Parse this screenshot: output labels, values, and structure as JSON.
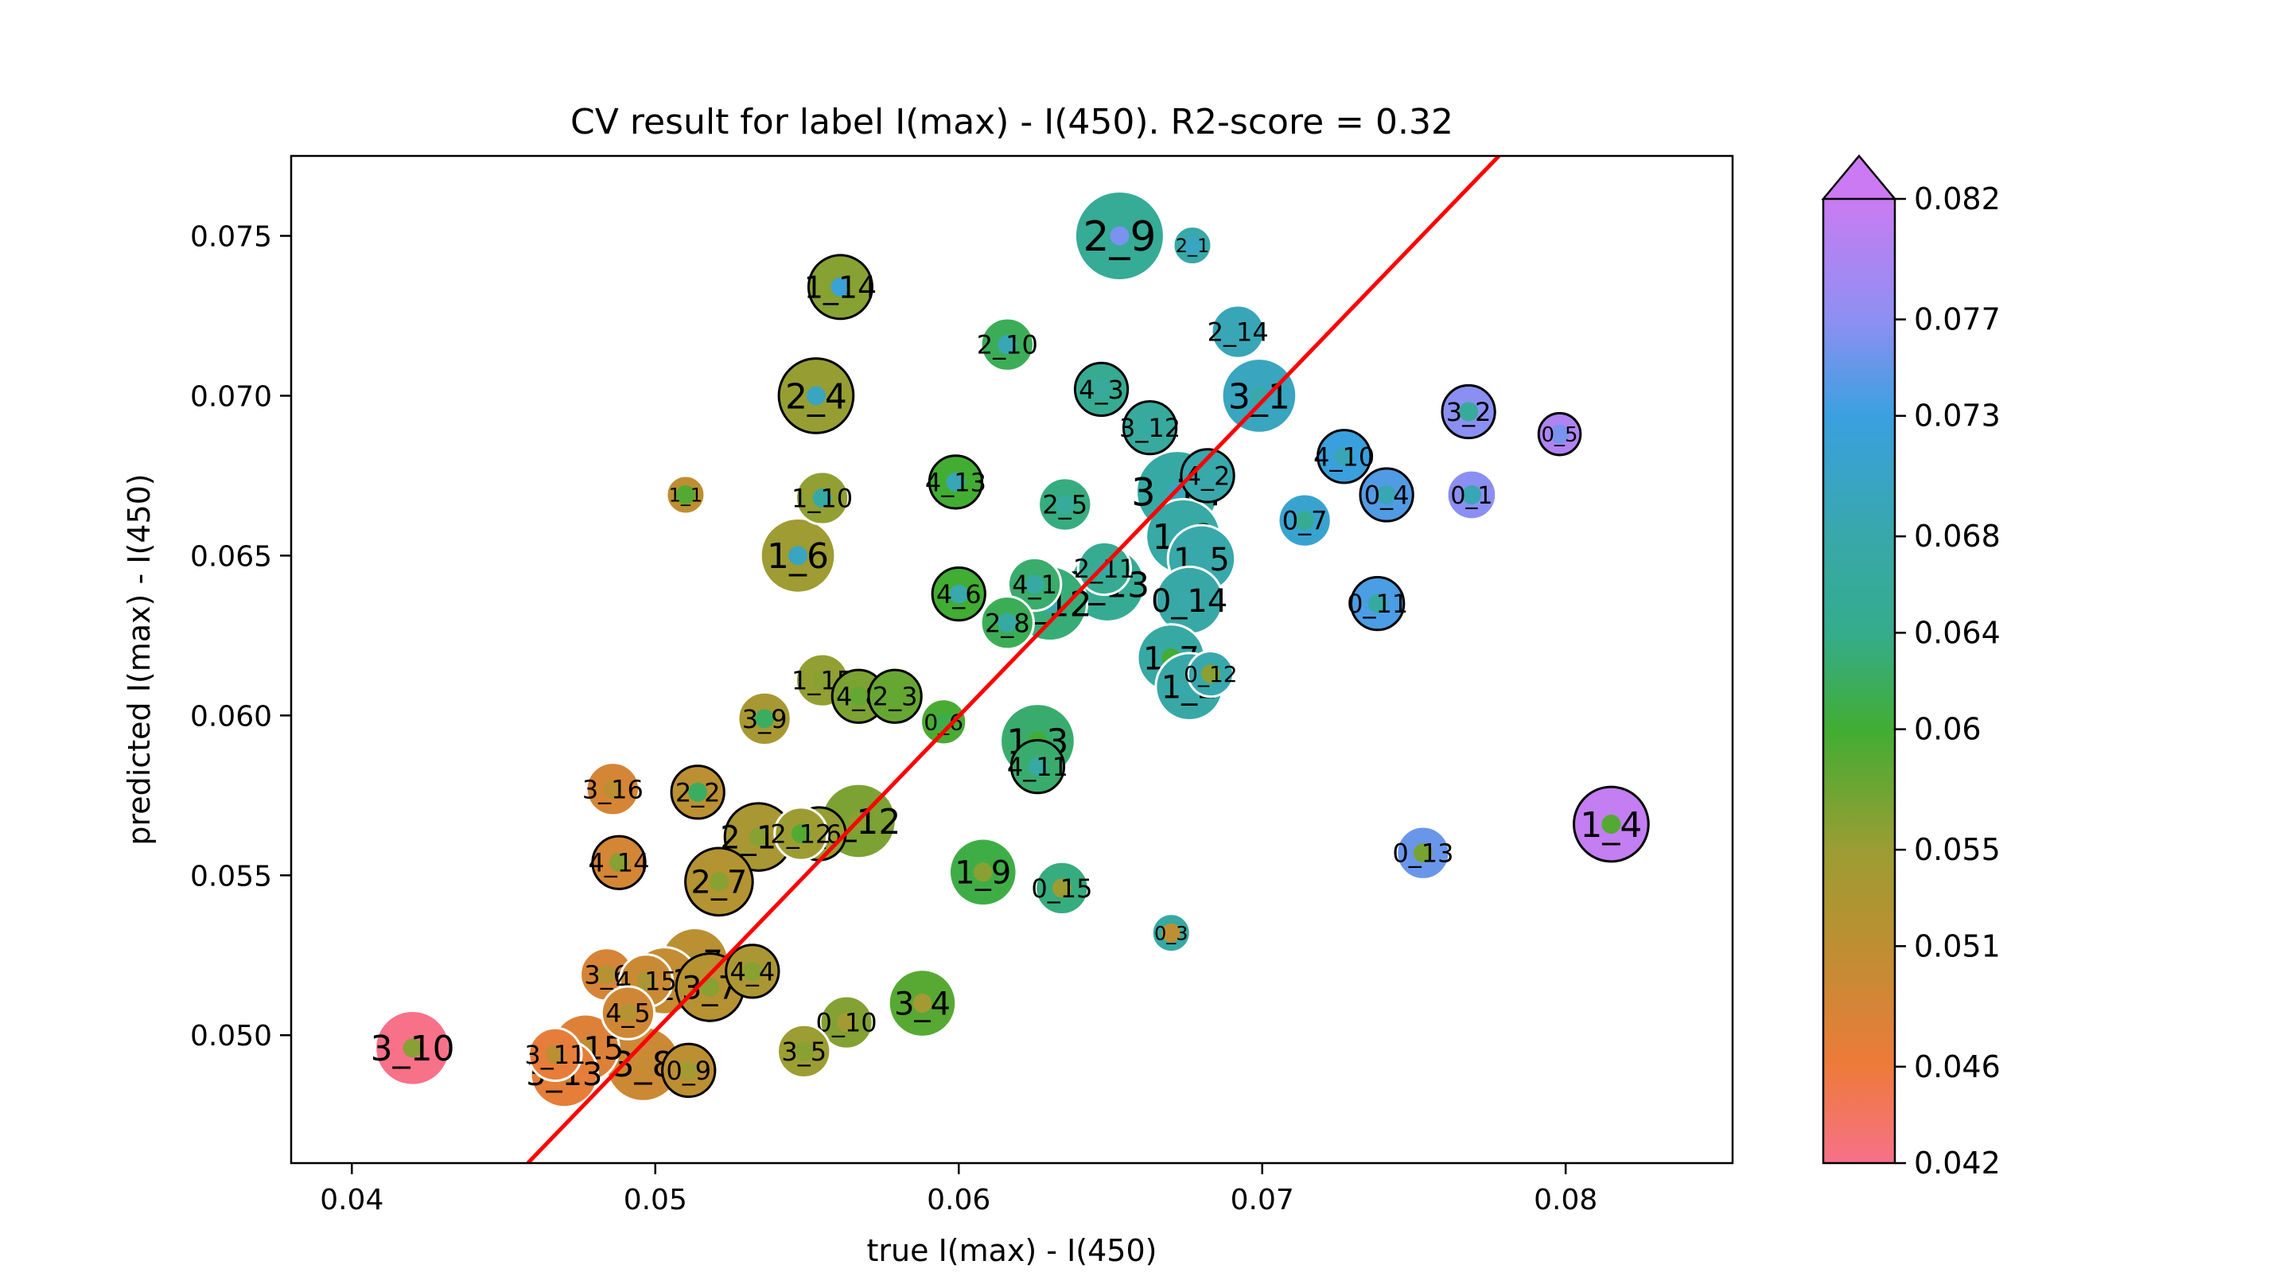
{
  "chart_data": {
    "type": "scatter",
    "title": "CV result for label I(max) - I(450). R2-score = 0.32",
    "xlabel": "true I(max) - I(450)",
    "ylabel": "predicted I(max) - I(450)",
    "xlim": [
      0.038,
      0.0855
    ],
    "ylim": [
      0.046,
      0.0775
    ],
    "xticks": [
      0.04,
      0.05,
      0.06,
      0.07,
      0.08
    ],
    "xtick_labels": [
      "0.04",
      "0.05",
      "0.06",
      "0.07",
      "0.08"
    ],
    "yticks": [
      0.05,
      0.055,
      0.06,
      0.065,
      0.07,
      0.075
    ],
    "ytick_labels": [
      "0.050",
      "0.055",
      "0.060",
      "0.065",
      "0.070",
      "0.075"
    ],
    "grid": false,
    "fit_line": {
      "color": "#ff0000",
      "points": [
        [
          0.0458,
          0.046
        ],
        [
          0.0778,
          0.0775
        ]
      ]
    },
    "colorbar": {
      "min": 0.042,
      "max": 0.082,
      "extend": "max",
      "ticks": [
        0.042,
        0.046,
        0.051,
        0.055,
        0.06,
        0.064,
        0.068,
        0.073,
        0.077,
        0.082
      ],
      "tick_labels": [
        "0.042",
        "0.046",
        "0.051",
        "0.055",
        "0.06",
        "0.064",
        "0.068",
        "0.073",
        "0.077",
        "0.082"
      ],
      "stops": [
        {
          "v": 0.042,
          "c": "#f77189"
        },
        {
          "v": 0.046,
          "c": "#ee7a3b"
        },
        {
          "v": 0.051,
          "c": "#bd8f32"
        },
        {
          "v": 0.055,
          "c": "#9b9d33"
        },
        {
          "v": 0.06,
          "c": "#41ad33"
        },
        {
          "v": 0.064,
          "c": "#35ac8c"
        },
        {
          "v": 0.068,
          "c": "#38a8aa"
        },
        {
          "v": 0.073,
          "c": "#3aa0e0"
        },
        {
          "v": 0.077,
          "c": "#8e8ff2"
        },
        {
          "v": 0.082,
          "c": "#c97cf2"
        }
      ],
      "over_color": "#cc7af4"
    },
    "points": [
      {
        "label": "2_9",
        "x": 0.0653,
        "y": 0.075,
        "size": 2.0,
        "edge": "white",
        "inner": 0.076
      },
      {
        "label": "2_1",
        "x": 0.0677,
        "y": 0.0747,
        "size": 0.6,
        "edge": "white",
        "inner": 0.07
      },
      {
        "label": "1_14",
        "x": 0.0561,
        "y": 0.0734,
        "size": 1.3,
        "edge": "black",
        "inner": 0.072
      },
      {
        "label": "2_14",
        "x": 0.0692,
        "y": 0.072,
        "size": 1.0,
        "edge": "white",
        "inner": 0.069
      },
      {
        "label": "2_10",
        "x": 0.0616,
        "y": 0.0716,
        "size": 1.0,
        "edge": "white",
        "inner": 0.069
      },
      {
        "label": "2_4",
        "x": 0.0553,
        "y": 0.07,
        "size": 1.6,
        "edge": "black",
        "inner": 0.07
      },
      {
        "label": "3_1",
        "x": 0.0699,
        "y": 0.07,
        "size": 1.6,
        "edge": "white",
        "inner": 0.068
      },
      {
        "label": "4_3",
        "x": 0.0647,
        "y": 0.0702,
        "size": 1.0,
        "edge": "black",
        "inner": 0.066
      },
      {
        "label": "3_2",
        "x": 0.0768,
        "y": 0.0695,
        "size": 1.0,
        "edge": "black",
        "inner": 0.066
      },
      {
        "label": "3_12",
        "x": 0.0663,
        "y": 0.069,
        "size": 1.0,
        "edge": "black",
        "inner": 0.067
      },
      {
        "label": "0_5",
        "x": 0.0798,
        "y": 0.0688,
        "size": 0.7,
        "edge": "black",
        "inner": 0.076
      },
      {
        "label": "4_10",
        "x": 0.0727,
        "y": 0.0681,
        "size": 1.0,
        "edge": "black",
        "inner": 0.069
      },
      {
        "label": "4_13",
        "x": 0.0599,
        "y": 0.0673,
        "size": 1.0,
        "edge": "black",
        "inner": 0.069
      },
      {
        "label": "4_2",
        "x": 0.0682,
        "y": 0.0675,
        "size": 1.0,
        "edge": "black",
        "inner": 0.068
      },
      {
        "label": "3_14",
        "x": 0.0672,
        "y": 0.067,
        "size": 1.8,
        "edge": "white",
        "inner": 0.07
      },
      {
        "label": "1_1",
        "x": 0.051,
        "y": 0.0669,
        "size": 0.6,
        "edge": "white",
        "inner": 0.059
      },
      {
        "label": "0_4",
        "x": 0.0741,
        "y": 0.0669,
        "size": 1.0,
        "edge": "black",
        "inner": 0.069
      },
      {
        "label": "0_1",
        "x": 0.0769,
        "y": 0.0669,
        "size": 0.9,
        "edge": "white",
        "inner": 0.069
      },
      {
        "label": "1_10",
        "x": 0.0555,
        "y": 0.0668,
        "size": 1.0,
        "edge": "white",
        "inner": 0.067
      },
      {
        "label": "2_5",
        "x": 0.0635,
        "y": 0.0666,
        "size": 1.0,
        "edge": "white",
        "inner": 0.066
      },
      {
        "label": "0_7",
        "x": 0.0714,
        "y": 0.0661,
        "size": 1.0,
        "edge": "white",
        "inner": 0.065
      },
      {
        "label": "1_8",
        "x": 0.0674,
        "y": 0.0656,
        "size": 1.6,
        "edge": "white",
        "inner": 0.069
      },
      {
        "label": "1_6",
        "x": 0.0547,
        "y": 0.065,
        "size": 1.6,
        "edge": "white",
        "inner": 0.07
      },
      {
        "label": "1_5",
        "x": 0.068,
        "y": 0.0649,
        "size": 1.4,
        "edge": "white",
        "inner": 0.068
      },
      {
        "label": "2_11",
        "x": 0.0648,
        "y": 0.0646,
        "size": 1.0,
        "edge": "white",
        "inner": 0.067
      },
      {
        "label": "2_13",
        "x": 0.0649,
        "y": 0.0641,
        "size": 1.6,
        "edge": "white",
        "inner": 0.068
      },
      {
        "label": "4_6",
        "x": 0.06,
        "y": 0.0638,
        "size": 1.0,
        "edge": "black",
        "inner": 0.068
      },
      {
        "label": "4_1",
        "x": 0.0625,
        "y": 0.0641,
        "size": 1.0,
        "edge": "white",
        "inner": 0.067
      },
      {
        "label": "0_14",
        "x": 0.0676,
        "y": 0.0636,
        "size": 1.4,
        "edge": "white",
        "inner": 0.068
      },
      {
        "label": "4_12",
        "x": 0.063,
        "y": 0.0635,
        "size": 1.6,
        "edge": "white",
        "inner": 0.068
      },
      {
        "label": "0_11",
        "x": 0.0738,
        "y": 0.0635,
        "size": 1.0,
        "edge": "black",
        "inner": 0.067
      },
      {
        "label": "2_8",
        "x": 0.0616,
        "y": 0.0629,
        "size": 1.0,
        "edge": "white",
        "inner": 0.067
      },
      {
        "label": "1_7",
        "x": 0.067,
        "y": 0.0618,
        "size": 1.4,
        "edge": "white",
        "inner": 0.06
      },
      {
        "label": "0_12",
        "x": 0.0683,
        "y": 0.0613,
        "size": 0.8,
        "edge": "white",
        "inner": 0.056
      },
      {
        "label": "1_2",
        "x": 0.0676,
        "y": 0.0609,
        "size": 1.4,
        "edge": "white",
        "inner": 0.068
      },
      {
        "label": "1_15",
        "x": 0.0555,
        "y": 0.0611,
        "size": 1.0,
        "edge": "white",
        "inner": 0.056
      },
      {
        "label": "4_8",
        "x": 0.0567,
        "y": 0.0606,
        "size": 1.0,
        "edge": "black",
        "inner": 0.058
      },
      {
        "label": "2_3",
        "x": 0.0579,
        "y": 0.0606,
        "size": 1.0,
        "edge": "black",
        "inner": 0.058
      },
      {
        "label": "3_9",
        "x": 0.0536,
        "y": 0.0599,
        "size": 1.0,
        "edge": "white",
        "inner": 0.062
      },
      {
        "label": "0_6",
        "x": 0.0595,
        "y": 0.0598,
        "size": 0.8,
        "edge": "white",
        "inner": 0.061
      },
      {
        "label": "1_3",
        "x": 0.0626,
        "y": 0.0592,
        "size": 1.6,
        "edge": "white",
        "inner": 0.06
      },
      {
        "label": "4_11",
        "x": 0.0626,
        "y": 0.0584,
        "size": 1.0,
        "edge": "black",
        "inner": 0.067
      },
      {
        "label": "3_16",
        "x": 0.0486,
        "y": 0.0577,
        "size": 1.0,
        "edge": "white",
        "inner": 0.051
      },
      {
        "label": "2_2",
        "x": 0.0514,
        "y": 0.0576,
        "size": 1.0,
        "edge": "black",
        "inner": 0.062
      },
      {
        "label": "1_12",
        "x": 0.0567,
        "y": 0.0567,
        "size": 1.6,
        "edge": "white",
        "inner": 0.056
      },
      {
        "label": "1_4",
        "x": 0.0815,
        "y": 0.0566,
        "size": 1.6,
        "edge": "black",
        "inner": 0.059
      },
      {
        "label": "2_6",
        "x": 0.0554,
        "y": 0.0563,
        "size": 1.0,
        "edge": "black",
        "inner": 0.059
      },
      {
        "label": "2_12",
        "x": 0.0548,
        "y": 0.0563,
        "size": 1.0,
        "edge": "white",
        "inner": 0.059
      },
      {
        "label": "2_13",
        "x": 0.0534,
        "y": 0.0562,
        "size": 1.4,
        "edge": "black",
        "inner": 0.056
      },
      {
        "label": "0_13",
        "x": 0.0753,
        "y": 0.0557,
        "size": 1.0,
        "edge": "white",
        "inner": 0.057
      },
      {
        "label": "4_14",
        "x": 0.0488,
        "y": 0.0554,
        "size": 1.0,
        "edge": "black",
        "inner": 0.056
      },
      {
        "label": "1_9",
        "x": 0.0608,
        "y": 0.0551,
        "size": 1.4,
        "edge": "white",
        "inner": 0.056
      },
      {
        "label": "2_7",
        "x": 0.0521,
        "y": 0.0548,
        "size": 1.4,
        "edge": "black",
        "inner": 0.056
      },
      {
        "label": "0_15",
        "x": 0.0634,
        "y": 0.0546,
        "size": 1.0,
        "edge": "white",
        "inner": 0.055
      },
      {
        "label": "0_3",
        "x": 0.067,
        "y": 0.0532,
        "size": 0.6,
        "edge": "white",
        "inner": 0.051
      },
      {
        "label": "3_7",
        "x": 0.0513,
        "y": 0.0523,
        "size": 1.4,
        "edge": "white",
        "inner": 0.053
      },
      {
        "label": "4_4",
        "x": 0.0532,
        "y": 0.052,
        "size": 1.0,
        "edge": "black",
        "inner": 0.056
      },
      {
        "label": "3_6",
        "x": 0.0484,
        "y": 0.0519,
        "size": 1.0,
        "edge": "white",
        "inner": 0.052
      },
      {
        "label": "4_15",
        "x": 0.0497,
        "y": 0.0517,
        "size": 1.0,
        "edge": "white",
        "inner": 0.053
      },
      {
        "label": "3_3",
        "x": 0.0503,
        "y": 0.0517,
        "size": 1.4,
        "edge": "white",
        "inner": 0.053
      },
      {
        "label": "3_7",
        "x": 0.0518,
        "y": 0.0515,
        "size": 1.4,
        "edge": "black",
        "inner": 0.056
      },
      {
        "label": "3_4",
        "x": 0.0588,
        "y": 0.051,
        "size": 1.4,
        "edge": "white",
        "inner": 0.054
      },
      {
        "label": "4_5",
        "x": 0.0491,
        "y": 0.0507,
        "size": 1.0,
        "edge": "white",
        "inner": 0.052
      },
      {
        "label": "0_10",
        "x": 0.0563,
        "y": 0.0504,
        "size": 1.0,
        "edge": "white",
        "inner": 0.054
      },
      {
        "label": "3_10",
        "x": 0.042,
        "y": 0.0496,
        "size": 1.6,
        "edge": "white",
        "inner": 0.056
      },
      {
        "label": "3_15",
        "x": 0.0477,
        "y": 0.0496,
        "size": 1.4,
        "edge": "white",
        "inner": 0.051
      },
      {
        "label": "3_5",
        "x": 0.0549,
        "y": 0.0495,
        "size": 1.0,
        "edge": "white",
        "inner": 0.056
      },
      {
        "label": "3_11",
        "x": 0.0467,
        "y": 0.0494,
        "size": 1.0,
        "edge": "white",
        "inner": 0.051
      },
      {
        "label": "3_8",
        "x": 0.0496,
        "y": 0.0491,
        "size": 1.6,
        "edge": "white",
        "inner": 0.05
      },
      {
        "label": "3_13",
        "x": 0.047,
        "y": 0.0488,
        "size": 1.4,
        "edge": "white",
        "inner": 0.049
      },
      {
        "label": "0_9",
        "x": 0.0511,
        "y": 0.0489,
        "size": 1.0,
        "edge": "black",
        "inner": 0.054
      }
    ]
  }
}
